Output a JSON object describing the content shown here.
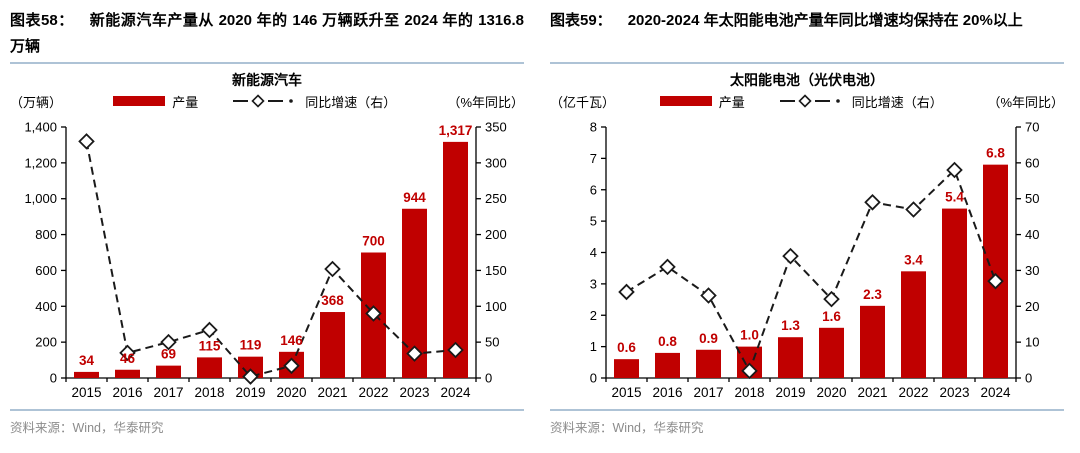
{
  "panels": [
    {
      "fig_label": "图表58：",
      "headline": "新能源汽车产量从 2020 年的 146 万辆跃升至 2024 年的 1316.8 万辆",
      "source": "资料来源：Wind，华泰研究"
    },
    {
      "fig_label": "图表59：",
      "headline": "2020-2024 年太阳能电池产量年同比增速均保持在 20%以上",
      "source": "资料来源：Wind，华泰研究"
    }
  ],
  "colors": {
    "bar_red": "#c00000",
    "data_label_red": "#c00000",
    "line_black": "#1a1a1a",
    "divider_blue": "#aec3d6",
    "footer_gray": "#8c8c8c"
  },
  "chart_data": [
    {
      "type": "bar+line",
      "title": "新能源汽车",
      "categories": [
        "2015",
        "2016",
        "2017",
        "2018",
        "2019",
        "2020",
        "2021",
        "2022",
        "2023",
        "2024"
      ],
      "left_axis": {
        "label": "（万辆）",
        "min": 0,
        "max": 1400,
        "tick_values": [
          0,
          200,
          400,
          600,
          800,
          1000,
          1200,
          1400
        ],
        "tick_labels": [
          "0",
          "200",
          "400",
          "600",
          "800",
          "1,000",
          "1,200",
          "1,400"
        ]
      },
      "right_axis": {
        "label": "（%年同比）",
        "min": 0,
        "max": 350,
        "tick_values": [
          0,
          50,
          100,
          150,
          200,
          250,
          300,
          350
        ],
        "tick_labels": [
          "0",
          "50",
          "100",
          "150",
          "200",
          "250",
          "300",
          "350"
        ]
      },
      "bars": {
        "name": "产量",
        "color": "#c00000",
        "values": [
          34,
          46,
          69,
          115,
          119,
          146,
          368,
          700,
          944,
          1317
        ],
        "labels": [
          "34",
          "46",
          "69",
          "115",
          "119",
          "146",
          "368",
          "700",
          "944",
          "1,317"
        ]
      },
      "line": {
        "name": "同比增速（右）",
        "color": "#1a1a1a",
        "marker": "diamond",
        "axis": "right",
        "values": [
          330,
          35,
          50,
          67,
          2,
          17,
          152,
          90,
          34,
          39
        ]
      },
      "grid": false,
      "legend_position": "top"
    },
    {
      "type": "bar+line",
      "title": "太阳能电池（光伏电池）",
      "categories": [
        "2015",
        "2016",
        "2017",
        "2018",
        "2019",
        "2020",
        "2021",
        "2022",
        "2023",
        "2024"
      ],
      "left_axis": {
        "label": "（亿千瓦）",
        "min": 0,
        "max": 8,
        "tick_values": [
          0,
          1,
          2,
          3,
          4,
          5,
          6,
          7,
          8
        ],
        "tick_labels": [
          "0",
          "1",
          "2",
          "3",
          "4",
          "5",
          "6",
          "7",
          "8"
        ]
      },
      "right_axis": {
        "label": "（%年同比）",
        "min": 0,
        "max": 70,
        "tick_values": [
          0,
          10,
          20,
          30,
          40,
          50,
          60,
          70
        ],
        "tick_labels": [
          "0",
          "10",
          "20",
          "30",
          "40",
          "50",
          "60",
          "70"
        ]
      },
      "bars": {
        "name": "产量",
        "color": "#c00000",
        "values": [
          0.6,
          0.8,
          0.9,
          1.0,
          1.3,
          1.6,
          2.3,
          3.4,
          5.4,
          6.8
        ],
        "labels": [
          "0.6",
          "0.8",
          "0.9",
          "1.0",
          "1.3",
          "1.6",
          "2.3",
          "3.4",
          "5.4",
          "6.8"
        ]
      },
      "line": {
        "name": "同比增速（右）",
        "color": "#1a1a1a",
        "marker": "diamond",
        "axis": "right",
        "values": [
          24,
          31,
          23,
          2,
          34,
          22,
          49,
          47,
          58,
          27
        ]
      },
      "grid": false,
      "legend_position": "top"
    }
  ]
}
